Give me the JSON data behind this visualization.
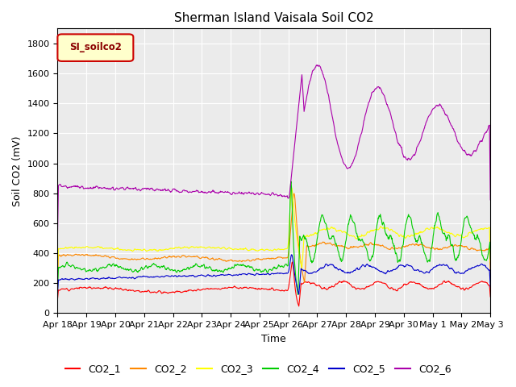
{
  "title": "Sherman Island Vaisala Soil CO2",
  "ylabel": "Soil CO2 (mV)",
  "xlabel": "Time",
  "legend_label": "SI_soilco2",
  "ylim": [
    0,
    1900
  ],
  "yticks": [
    0,
    200,
    400,
    600,
    800,
    1000,
    1200,
    1400,
    1600,
    1800
  ],
  "colors": {
    "CO2_1": "#ff0000",
    "CO2_2": "#ff8800",
    "CO2_3": "#ffff00",
    "CO2_4": "#00cc00",
    "CO2_5": "#0000cc",
    "CO2_6": "#aa00aa"
  },
  "background": "#ebebeb",
  "n_points": 1000
}
